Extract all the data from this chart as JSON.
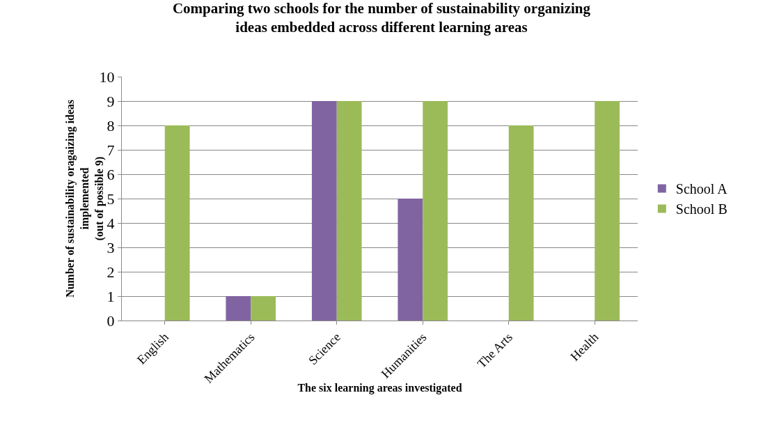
{
  "chart_data": {
    "type": "bar",
    "title": "Comparing two schools for the number of sustainability organizing\nideas embedded across different learning areas",
    "xlabel": "The six learning areas investigated",
    "ylabel": "Number of sustainability oragaizing ideas\nimplemented\n(out of possible 9)",
    "categories": [
      "English",
      "Mathematics",
      "Science",
      "Humanities",
      "The Arts",
      "Health"
    ],
    "series": [
      {
        "name": "School A",
        "color": "#8064a2",
        "values": [
          0,
          1,
          9,
          5,
          0,
          0
        ]
      },
      {
        "name": "School B",
        "color": "#9bbb59",
        "values": [
          8,
          1,
          9,
          9,
          8,
          9
        ]
      }
    ],
    "ylim": [
      0,
      10
    ],
    "yticks": [
      0,
      1,
      2,
      3,
      4,
      5,
      6,
      7,
      8,
      9,
      10
    ],
    "grid": "y",
    "legend": "right"
  }
}
